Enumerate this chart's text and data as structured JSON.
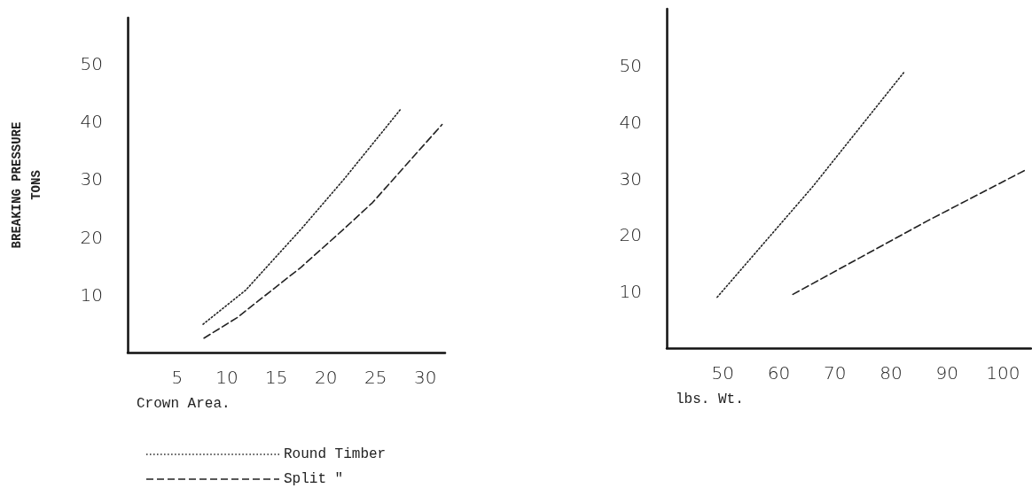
{
  "chart_data": [
    {
      "type": "line",
      "xlabel": "Crown Area.",
      "ylabel": "BREAKING PRESSURE\nTONS",
      "xlim": [
        0,
        32
      ],
      "xticks": [
        5,
        10,
        15,
        20,
        25,
        30
      ],
      "ylim": [
        0,
        58
      ],
      "yticks": [
        10,
        20,
        30,
        40,
        50
      ],
      "grid": false,
      "legend": "bottom",
      "marker": "none",
      "series": [
        {
          "name": "Round Timber",
          "color": "#222222",
          "line_style": "dotted",
          "x": [
            7.6,
            11.9,
            17.5,
            21.8,
            27.5
          ],
          "values": [
            4.9,
            10.8,
            21.4,
            30,
            42.1
          ]
        },
        {
          "name": "Split \"",
          "color": "#222222",
          "line_style": "dashed",
          "x": [
            7.7,
            11,
            17.5,
            21.8,
            24.7,
            31.7
          ],
          "values": [
            2.5,
            6,
            14.8,
            21.4,
            26,
            39.5
          ]
        }
      ]
    },
    {
      "type": "line",
      "xlabel": "lbs. Wt.",
      "xlim": [
        40,
        105
      ],
      "xticks": [
        50,
        60,
        70,
        80,
        90,
        100
      ],
      "ylim": [
        0,
        60
      ],
      "yticks": [
        10,
        20,
        30,
        40,
        50
      ],
      "grid": false,
      "marker": "none",
      "series": [
        {
          "color": "#222222",
          "line_style": "dotted",
          "x": [
            49,
            66,
            82.5
          ],
          "values": [
            9,
            28.5,
            49
          ]
        },
        {
          "color": "#222222",
          "line_style": "dashed",
          "x": [
            62.5,
            74.5,
            86.5,
            104
          ],
          "values": [
            9.5,
            16,
            22.5,
            31.5
          ]
        }
      ]
    }
  ]
}
